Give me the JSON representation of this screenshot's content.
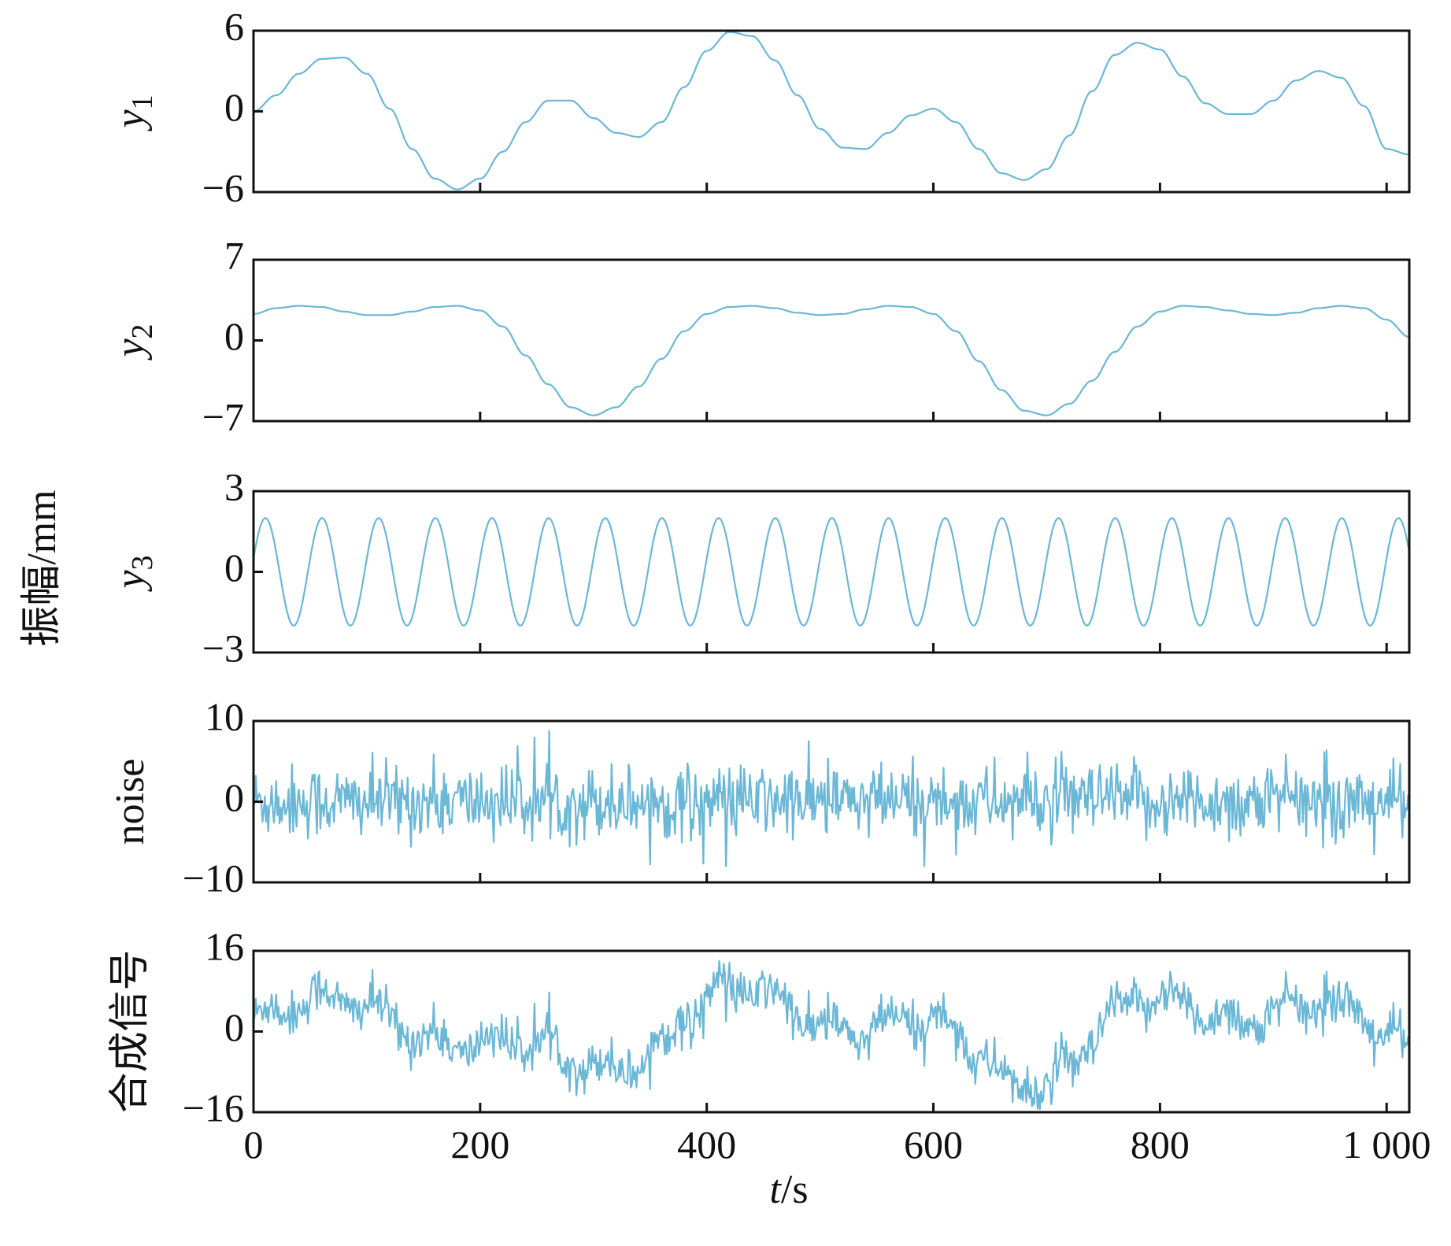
{
  "figure": {
    "y_axis_title": "振幅/mm",
    "x_axis_title_italic": "t",
    "x_axis_title_rest": "/s"
  },
  "chart_data": {
    "type": "line",
    "xlim": [
      0,
      1020
    ],
    "x_ticks": [
      0,
      200,
      400,
      600,
      800,
      1000
    ],
    "x_tick_labels": [
      "0",
      "200",
      "400",
      "600",
      "800",
      "1 000"
    ],
    "series_color": "#6BB7D6",
    "panels": [
      {
        "id": "y1",
        "ylabel_base": "y",
        "ylabel_sub": "1",
        "ylim": [
          -6,
          6
        ],
        "yticks": [
          -6,
          0,
          6
        ],
        "ytick_labels": [
          "−6",
          "0",
          "6"
        ],
        "x": [
          0,
          20,
          40,
          60,
          80,
          100,
          120,
          140,
          160,
          180,
          200,
          220,
          240,
          260,
          280,
          300,
          320,
          340,
          360,
          380,
          400,
          420,
          440,
          460,
          480,
          500,
          520,
          540,
          560,
          580,
          600,
          620,
          640,
          660,
          680,
          700,
          720,
          740,
          760,
          780,
          800,
          820,
          840,
          860,
          880,
          900,
          920,
          940,
          960,
          980,
          1000,
          1020
        ],
        "y": [
          0.0,
          1.2,
          2.8,
          3.9,
          4.0,
          2.8,
          0.2,
          -2.8,
          -5.0,
          -5.8,
          -5.0,
          -3.0,
          -0.8,
          0.8,
          0.8,
          -0.5,
          -1.6,
          -1.9,
          -0.8,
          1.8,
          4.5,
          5.9,
          5.6,
          3.8,
          1.2,
          -1.3,
          -2.7,
          -2.8,
          -1.6,
          -0.3,
          0.2,
          -0.8,
          -2.8,
          -4.6,
          -5.1,
          -4.3,
          -1.8,
          1.5,
          4.2,
          5.1,
          4.6,
          2.6,
          0.6,
          -0.2,
          -0.2,
          0.8,
          2.3,
          3.0,
          2.5,
          0.4,
          -2.8,
          -3.2
        ]
      },
      {
        "id": "y2",
        "ylabel_base": "y",
        "ylabel_sub": "2",
        "ylim": [
          -7,
          7
        ],
        "yticks": [
          -7,
          0,
          7
        ],
        "ytick_labels": [
          "−7",
          "0",
          "7"
        ],
        "x": [
          0,
          20,
          40,
          60,
          80,
          100,
          120,
          140,
          160,
          180,
          200,
          220,
          240,
          260,
          280,
          300,
          320,
          340,
          360,
          380,
          400,
          420,
          440,
          460,
          480,
          500,
          520,
          540,
          560,
          580,
          600,
          620,
          640,
          660,
          680,
          700,
          720,
          740,
          760,
          780,
          800,
          820,
          840,
          860,
          880,
          900,
          920,
          940,
          960,
          980,
          1000,
          1020
        ],
        "y": [
          2.3,
          2.8,
          3.0,
          2.9,
          2.5,
          2.2,
          2.2,
          2.5,
          2.9,
          3.0,
          2.6,
          1.2,
          -1.3,
          -3.8,
          -5.8,
          -6.5,
          -5.8,
          -4.0,
          -1.6,
          0.8,
          2.3,
          2.9,
          3.0,
          2.8,
          2.4,
          2.2,
          2.3,
          2.7,
          3.0,
          2.9,
          2.3,
          0.8,
          -1.8,
          -4.3,
          -6.1,
          -6.5,
          -5.5,
          -3.5,
          -1.0,
          1.2,
          2.5,
          3.0,
          2.9,
          2.6,
          2.3,
          2.2,
          2.4,
          2.8,
          3.0,
          2.8,
          1.8,
          0.3
        ]
      },
      {
        "id": "y3",
        "ylabel_base": "y",
        "ylabel_sub": "3",
        "ylim": [
          -3,
          3
        ],
        "yticks": [
          -3,
          0,
          3
        ],
        "ytick_labels": [
          "−3",
          "0",
          "3"
        ],
        "sine": {
          "amplitude": 2.0,
          "period": 50,
          "phase_start_value": 0.5,
          "cycles_visible": 20
        }
      },
      {
        "id": "noise",
        "ylabel_text": "noise",
        "ylim": [
          -10,
          10
        ],
        "yticks": [
          -10,
          0,
          10
        ],
        "ytick_labels": [
          "−10",
          "0",
          "10"
        ],
        "noise": {
          "mean": 0,
          "std": 2.3,
          "min": -8,
          "max": 9
        }
      },
      {
        "id": "combined",
        "ylabel_text": "合成信号",
        "ylim": [
          -16,
          16
        ],
        "yticks": [
          -16,
          0,
          16
        ],
        "ytick_labels": [
          "−16",
          "0",
          "16"
        ],
        "composition": "y1 + y2 + y3 + noise"
      }
    ]
  }
}
